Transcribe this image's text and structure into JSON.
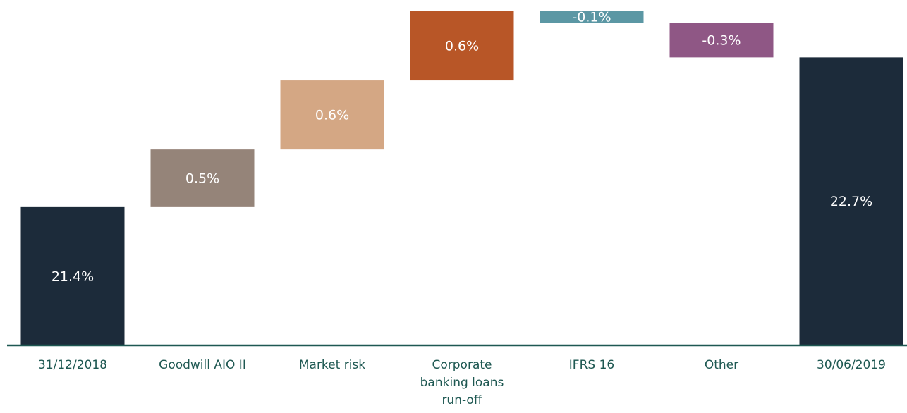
{
  "chart_data": {
    "type": "waterfall",
    "categories": [
      "31/12/2018",
      "Goodwill AIO II",
      "Market risk",
      "Corporate banking loans run-off",
      "IFRS 16",
      "Other",
      "30/06/2019"
    ],
    "measure": [
      "absolute",
      "relative",
      "relative",
      "relative",
      "relative",
      "relative",
      "total"
    ],
    "values": [
      21.4,
      0.5,
      0.6,
      0.6,
      -0.1,
      -0.3,
      22.7
    ],
    "value_labels": [
      "21.4%",
      "0.5%",
      "0.6%",
      "0.6%",
      "-0.1%",
      "-0.3%",
      "22.7%"
    ],
    "colors": [
      "#1c2b3a",
      "#958479",
      "#d4a784",
      "#b85627",
      "#5b97a4",
      "#8f5785",
      "#1c2b3a"
    ],
    "ylim": [
      20.2,
      23.1
    ]
  }
}
